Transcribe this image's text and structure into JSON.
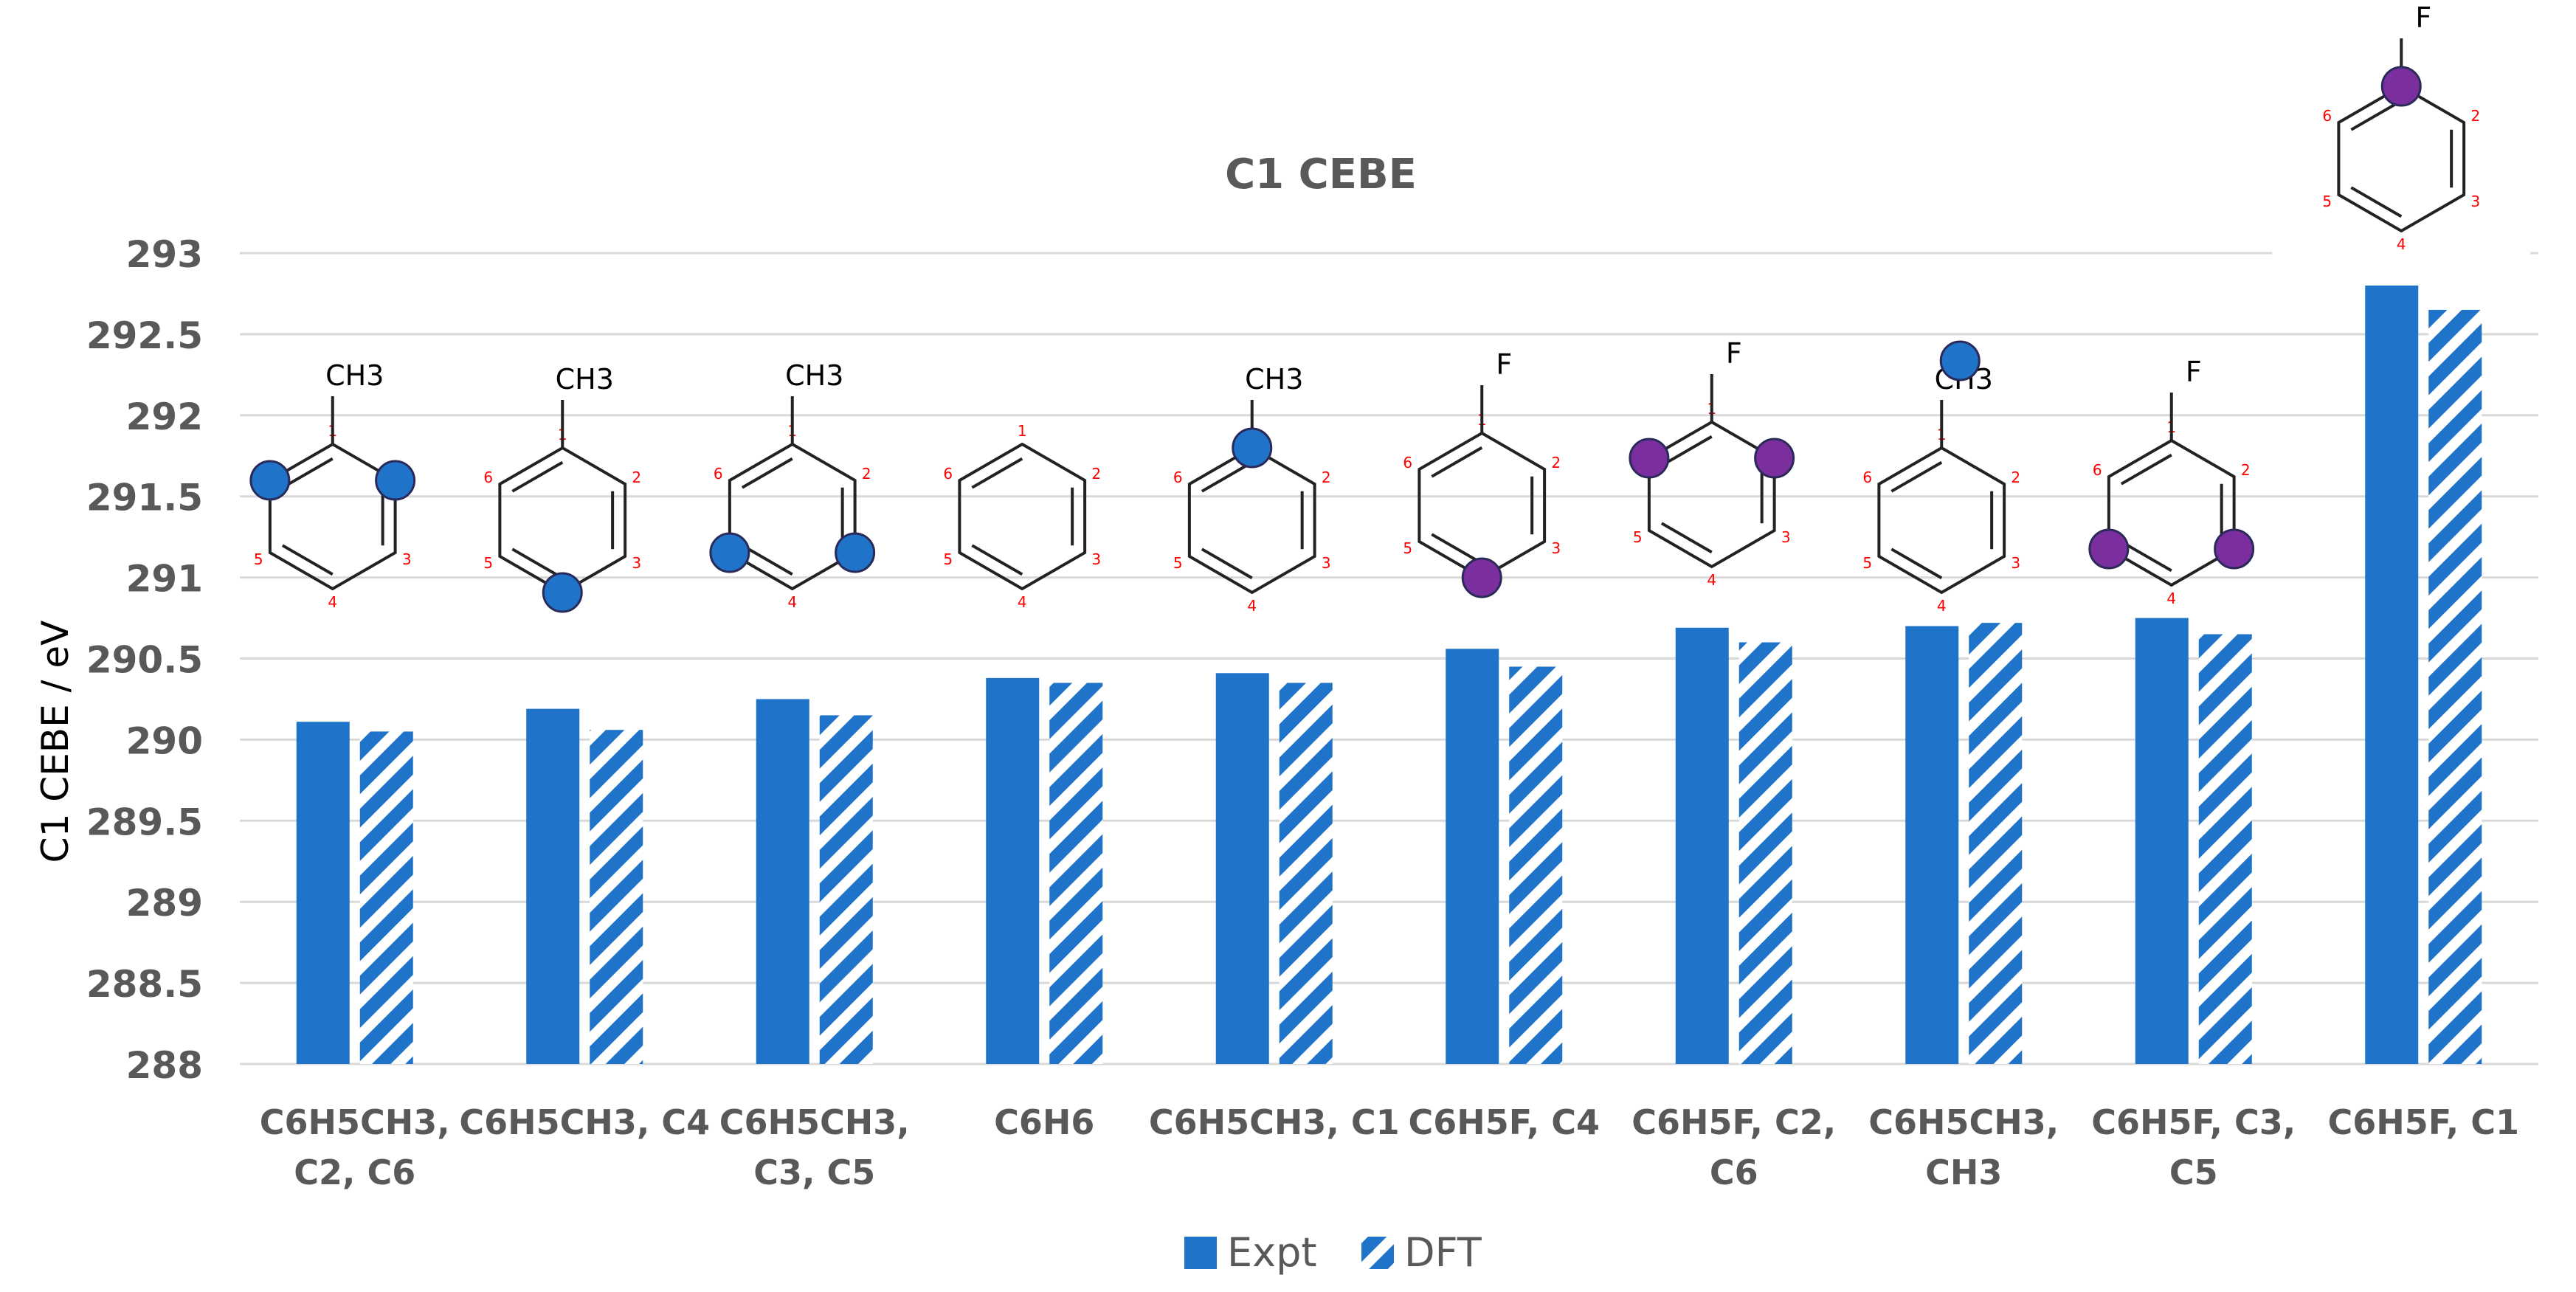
{
  "chart_data": {
    "type": "bar",
    "title": "C1 CEBE",
    "xlabel": "",
    "ylabel": "C1 CEBE / eV",
    "ylim": [
      288,
      293
    ],
    "ytick_step": 0.5,
    "y_ticks": [
      "288",
      "288.5",
      "289",
      "289.5",
      "290",
      "290.5",
      "291",
      "291.5",
      "292",
      "292.5",
      "293"
    ],
    "grid": true,
    "legend_position": "bottom",
    "categories": [
      [
        "C6H5CH3,",
        "C2, C6"
      ],
      [
        "C6H5CH3, C4"
      ],
      [
        "C6H5CH3,",
        "C3, C5"
      ],
      [
        "C6H6"
      ],
      [
        "C6H5CH3, C1"
      ],
      [
        "C6H5F, C4"
      ],
      [
        "C6H5F, C2,",
        "C6"
      ],
      [
        "C6H5CH3,",
        "CH3"
      ],
      [
        "C6H5F, C3,",
        "C5"
      ],
      [
        "C6H5F, C1"
      ]
    ],
    "series": [
      {
        "name": "Expt",
        "style": "solid",
        "color": "#1f73c8",
        "values": [
          290.11,
          290.19,
          290.25,
          290.38,
          290.41,
          290.56,
          290.69,
          290.7,
          290.75,
          292.8
        ]
      },
      {
        "name": "DFT",
        "style": "hatched",
        "color": "#1f73c8",
        "values": [
          290.05,
          290.06,
          290.15,
          290.35,
          290.35,
          290.45,
          290.6,
          290.72,
          290.65,
          292.65
        ]
      }
    ],
    "molecule_insets": [
      {
        "substituent": "CH3",
        "ring_labels": [
          "1",
          "2",
          "3",
          "4",
          "5",
          "6"
        ],
        "marker_color": "#1f73c8",
        "marked_positions": [
          "C2",
          "C6"
        ]
      },
      {
        "substituent": "CH3",
        "ring_labels": [
          "1",
          "2",
          "3",
          "4",
          "5",
          "6"
        ],
        "marker_color": "#1f73c8",
        "marked_positions": [
          "C4"
        ]
      },
      {
        "substituent": "CH3",
        "ring_labels": [
          "1",
          "2",
          "3",
          "4",
          "5",
          "6"
        ],
        "marker_color": "#1f73c8",
        "marked_positions": [
          "C3",
          "C5"
        ]
      },
      {
        "substituent": "",
        "ring_labels": [
          "1",
          "2",
          "3",
          "4",
          "5",
          "6"
        ],
        "marker_color": "#1f73c8",
        "marked_positions": []
      },
      {
        "substituent": "CH3",
        "ring_labels": [
          "1",
          "2",
          "3",
          "4",
          "5",
          "6"
        ],
        "marker_color": "#1f73c8",
        "marked_positions": [
          "C1"
        ]
      },
      {
        "substituent": "F",
        "ring_labels": [
          "1",
          "2",
          "3",
          "4",
          "5",
          "6"
        ],
        "marker_color": "#7b2f9f",
        "marked_positions": [
          "C4"
        ]
      },
      {
        "substituent": "F",
        "ring_labels": [
          "1",
          "2",
          "3",
          "4",
          "5",
          "6"
        ],
        "marker_color": "#7b2f9f",
        "marked_positions": [
          "C2",
          "C6"
        ]
      },
      {
        "substituent": "CH3",
        "ring_labels": [
          "1",
          "2",
          "3",
          "4",
          "5",
          "6"
        ],
        "marker_color": "#1f73c8",
        "marked_positions": [
          "CH3"
        ]
      },
      {
        "substituent": "F",
        "ring_labels": [
          "1",
          "2",
          "3",
          "4",
          "5",
          "6"
        ],
        "marker_color": "#7b2f9f",
        "marked_positions": [
          "C3",
          "C5"
        ]
      },
      {
        "substituent": "F",
        "ring_labels": [
          "1",
          "2",
          "3",
          "4",
          "5",
          "6"
        ],
        "marker_color": "#7b2f9f",
        "marked_positions": [
          "C1"
        ]
      }
    ]
  }
}
